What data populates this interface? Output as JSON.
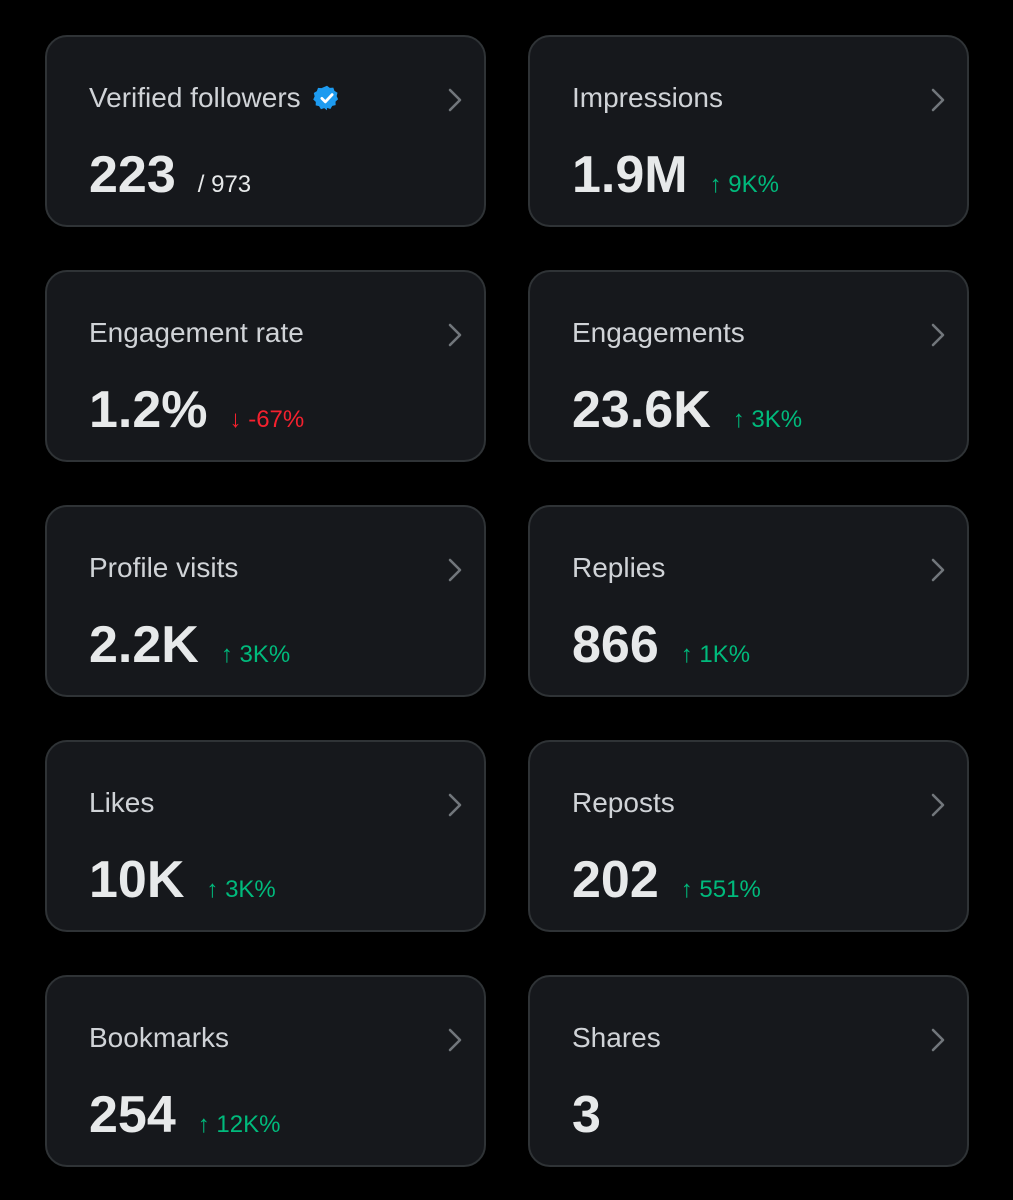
{
  "colors": {
    "background": "#000000",
    "card": "#16181c",
    "border": "#2f3336",
    "verified": "#1d9bf0",
    "up": "#00ba7c",
    "down": "#f4212e"
  },
  "cards": [
    {
      "title": "Verified followers",
      "value": "223",
      "sub": "/ 973",
      "verified_icon": "verified-badge-icon"
    },
    {
      "title": "Impressions",
      "value": "1.9M",
      "delta": "↑ 9K%",
      "direction": "up"
    },
    {
      "title": "Engagement rate",
      "value": "1.2%",
      "delta": "↓ -67%",
      "direction": "down"
    },
    {
      "title": "Engagements",
      "value": "23.6K",
      "delta": "↑ 3K%",
      "direction": "up"
    },
    {
      "title": "Profile visits",
      "value": "2.2K",
      "delta": "↑ 3K%",
      "direction": "up"
    },
    {
      "title": "Replies",
      "value": "866",
      "delta": "↑ 1K%",
      "direction": "up"
    },
    {
      "title": "Likes",
      "value": "10K",
      "delta": "↑ 3K%",
      "direction": "up"
    },
    {
      "title": "Reposts",
      "value": "202",
      "delta": "↑ 551%",
      "direction": "up"
    },
    {
      "title": "Bookmarks",
      "value": "254",
      "delta": "↑ 12K%",
      "direction": "up"
    },
    {
      "title": "Shares",
      "value": "3"
    }
  ]
}
